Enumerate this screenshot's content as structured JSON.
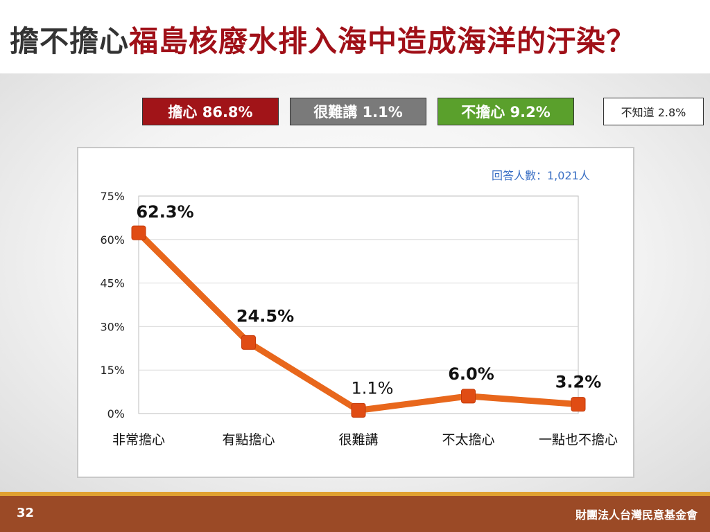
{
  "title": {
    "part1": "擔不擔心",
    "part2": "福島核廢水排入海中造成海洋的汙染？"
  },
  "summary": [
    {
      "id": "worried",
      "label": "擔心 86.8%",
      "color": "#a11418"
    },
    {
      "id": "hard",
      "label": "很難講 1.1%",
      "color": "#7a7a7a"
    },
    {
      "id": "notworried",
      "label": "不擔心 9.2%",
      "color": "#5aa02c"
    },
    {
      "id": "unknown",
      "label": "不知道 2.8%",
      "color": "#ffffff"
    }
  ],
  "respondents": "回答人數：1,021人",
  "chart_data": {
    "type": "line",
    "categories": [
      "非常擔心",
      "有點擔心",
      "很難講",
      "不太擔心",
      "一點也不擔心"
    ],
    "values": [
      62.3,
      24.5,
      1.1,
      6.0,
      3.2
    ],
    "data_labels": [
      "62.3%",
      "24.5%",
      "1.1%",
      "6.0%",
      "3.2%"
    ],
    "ylim": [
      0,
      75
    ],
    "yticks": [
      0,
      15,
      30,
      45,
      60,
      75
    ],
    "ytick_labels": [
      "0%",
      "15%",
      "30%",
      "45%",
      "60%",
      "75%"
    ],
    "grid": true,
    "line_color": "#e8671c",
    "marker_color": "#e04c14"
  },
  "footer": {
    "page_number": "32",
    "organization": "財團法人台灣民意基金會"
  }
}
